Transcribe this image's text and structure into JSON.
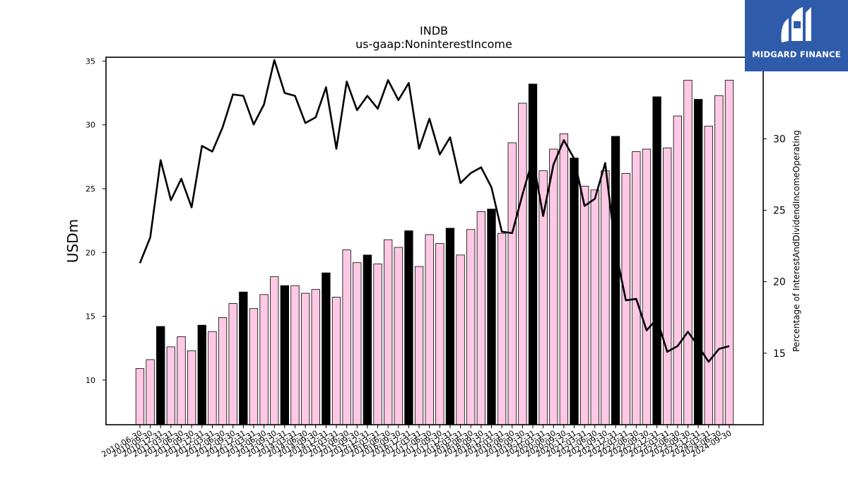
{
  "logo": {
    "text": "MIDGARD FINANCE"
  },
  "chart_data": {
    "type": "bar",
    "title": "INDB",
    "subtitle": "us-gaap:NoninterestIncome",
    "ylabel": "USDm",
    "y2label": "Percentage of InterestAndDividendIncomeOperating",
    "ylim": [
      6.5,
      35.3
    ],
    "y2lim": [
      10.0,
      35.7
    ],
    "yticks": [
      10,
      15,
      20,
      25,
      30,
      35
    ],
    "y2ticks": [
      15,
      20,
      25,
      30,
      35
    ],
    "colors": {
      "bar": "#ffc8e4",
      "bar_highlight": "#000000",
      "line": "#000000"
    },
    "categories": [
      "2010-06-30",
      "2010-09-30",
      "2010-12-31",
      "2011-03-31",
      "2011-06-30",
      "2011-09-30",
      "2011-12-31",
      "2012-03-31",
      "2012-06-30",
      "2012-09-30",
      "2012-12-31",
      "2013-03-31",
      "2013-06-30",
      "2013-09-30",
      "2013-12-31",
      "2014-03-31",
      "2014-06-30",
      "2014-09-30",
      "2014-12-31",
      "2015-03-31",
      "2015-06-30",
      "2015-09-30",
      "2015-12-31",
      "2016-03-31",
      "2016-06-30",
      "2016-09-30",
      "2016-12-31",
      "2017-03-31",
      "2017-06-30",
      "2017-09-30",
      "2017-12-31",
      "2018-03-31",
      "2018-06-30",
      "2018-09-30",
      "2018-12-31",
      "2019-03-31",
      "2019-06-30",
      "2019-09-30",
      "2019-12-31",
      "2020-03-31",
      "2020-06-30",
      "2020-09-30",
      "2020-12-31",
      "2021-03-31",
      "2021-06-30",
      "2021-09-30",
      "2021-12-31",
      "2022-03-31",
      "2022-06-30",
      "2022-09-30",
      "2022-12-31",
      "2023-03-31",
      "2023-06-30",
      "2023-09-30",
      "2023-12-31",
      "2024-03-31",
      "2024-06-30",
      "2024-09-30"
    ],
    "series": [
      {
        "type": "bar",
        "values": [
          10.9,
          11.6,
          14.2,
          12.6,
          13.4,
          12.3,
          14.3,
          13.8,
          14.9,
          16.0,
          16.9,
          15.6,
          16.7,
          18.1,
          17.4,
          17.4,
          16.8,
          17.1,
          18.4,
          16.5,
          20.2,
          19.2,
          19.8,
          19.1,
          21.0,
          20.4,
          21.7,
          18.9,
          21.4,
          20.7,
          21.9,
          19.8,
          21.8,
          23.2,
          23.4,
          21.5,
          28.6,
          31.7,
          33.2,
          26.4,
          28.1,
          29.3,
          27.4,
          25.2,
          24.9,
          26.4,
          29.1,
          26.2,
          27.9,
          28.1,
          32.2,
          28.2,
          30.7,
          33.5,
          32.0,
          29.9,
          32.3,
          33.5
        ]
      },
      {
        "type": "line",
        "axis": "y2",
        "values": [
          21.3,
          23.1,
          28.5,
          25.7,
          27.2,
          25.2,
          29.5,
          29.1,
          30.8,
          33.1,
          33.0,
          31.0,
          32.4,
          35.5,
          33.2,
          33.0,
          31.1,
          31.5,
          33.6,
          29.3,
          34.0,
          32.0,
          33.0,
          32.1,
          34.1,
          32.7,
          33.9,
          29.3,
          31.4,
          28.9,
          30.1,
          26.9,
          27.6,
          28.0,
          26.6,
          23.5,
          23.4,
          26.1,
          28.6,
          24.6,
          28.2,
          29.9,
          28.6,
          25.3,
          25.8,
          28.3,
          22.2,
          18.7,
          18.8,
          16.6,
          17.4,
          15.1,
          15.5,
          16.5,
          15.5,
          14.4,
          15.3,
          15.5
        ]
      }
    ]
  }
}
